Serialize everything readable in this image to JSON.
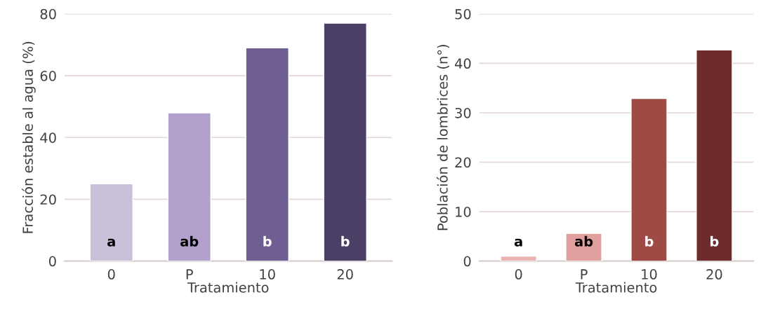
{
  "chart_data": [
    {
      "type": "bar",
      "xlabel": "Tratamiento",
      "ylabel": "Fracción estable al agua (%)",
      "categories": [
        "0",
        "P",
        "10",
        "20"
      ],
      "values": [
        25,
        48,
        69,
        77
      ],
      "colors": [
        "#cbc0d9",
        "#b0a0cb",
        "#6e5e91",
        "#4c3f66"
      ],
      "ylim": [
        0,
        80
      ],
      "yticks": [
        0,
        20,
        40,
        60,
        80
      ],
      "grid": "y",
      "value_labels": [
        "a",
        "ab",
        "b",
        "b"
      ]
    },
    {
      "type": "bar",
      "xlabel": "Tratamiento",
      "ylabel": "Población de lombrices (n°)",
      "categories": [
        "0",
        "P",
        "10",
        "20"
      ],
      "values": [
        1.0,
        5.6,
        32.9,
        42.7
      ],
      "colors": [
        "#e8b3b0",
        "#e0a09d",
        "#9e4a45",
        "#6e2b2c"
      ],
      "ylim": [
        0,
        50
      ],
      "yticks": [
        0,
        10,
        20,
        30,
        40,
        50
      ],
      "grid": "y",
      "value_labels": [
        "a",
        "ab",
        "b",
        "b"
      ]
    }
  ]
}
